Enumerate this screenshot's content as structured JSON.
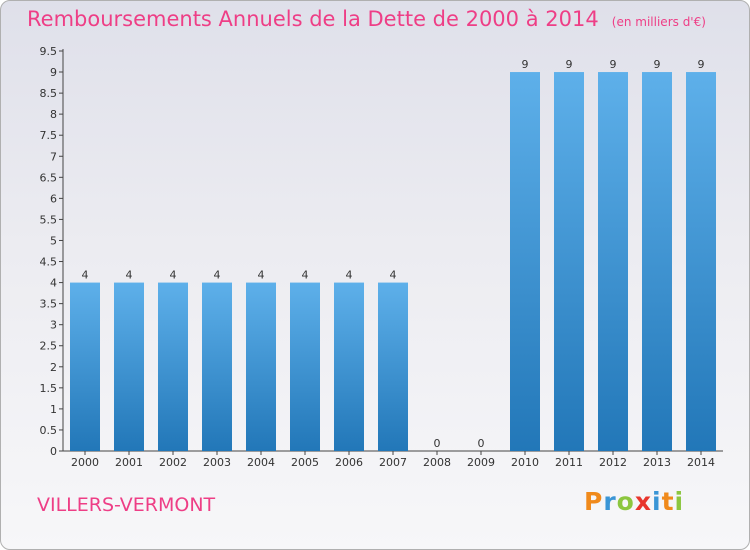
{
  "header": {
    "title": "Remboursements Annuels de la Dette de 2000 à 2014",
    "unit": "(en milliers d'€)"
  },
  "footer": {
    "place": "VILLERS-VERMONT",
    "logo": [
      "P",
      "r",
      "o",
      "x",
      "i",
      "t",
      "i"
    ]
  },
  "colors": {
    "title": "#ee3e86",
    "bar_light": "#5eb0ea",
    "bar_dark": "#2277b8",
    "logo": [
      "#f08a1c",
      "#3a95d6",
      "#8cc63f",
      "#e8352d",
      "#3a95d6",
      "#f08a1c",
      "#8cc63f"
    ]
  },
  "chart_data": {
    "type": "bar",
    "categories": [
      "2000",
      "2001",
      "2002",
      "2003",
      "2004",
      "2005",
      "2006",
      "2007",
      "2008",
      "2009",
      "2010",
      "2011",
      "2012",
      "2013",
      "2014"
    ],
    "values": [
      4,
      4,
      4,
      4,
      4,
      4,
      4,
      4,
      0,
      0,
      9,
      9,
      9,
      9,
      9
    ],
    "value_labels": [
      "4",
      "4",
      "4",
      "4",
      "4",
      "4",
      "4",
      "4",
      "0",
      "0",
      "9",
      "9",
      "9",
      "9",
      "9"
    ],
    "yticks": [
      "0",
      "0.5",
      "1",
      "1.5",
      "2",
      "2.5",
      "3",
      "3.5",
      "4",
      "4.5",
      "5",
      "5.5",
      "6",
      "6.5",
      "7",
      "7.5",
      "8",
      "8.5",
      "9",
      "9.5"
    ],
    "ylim": [
      0,
      9.5
    ],
    "grid": false,
    "legend": "none"
  }
}
